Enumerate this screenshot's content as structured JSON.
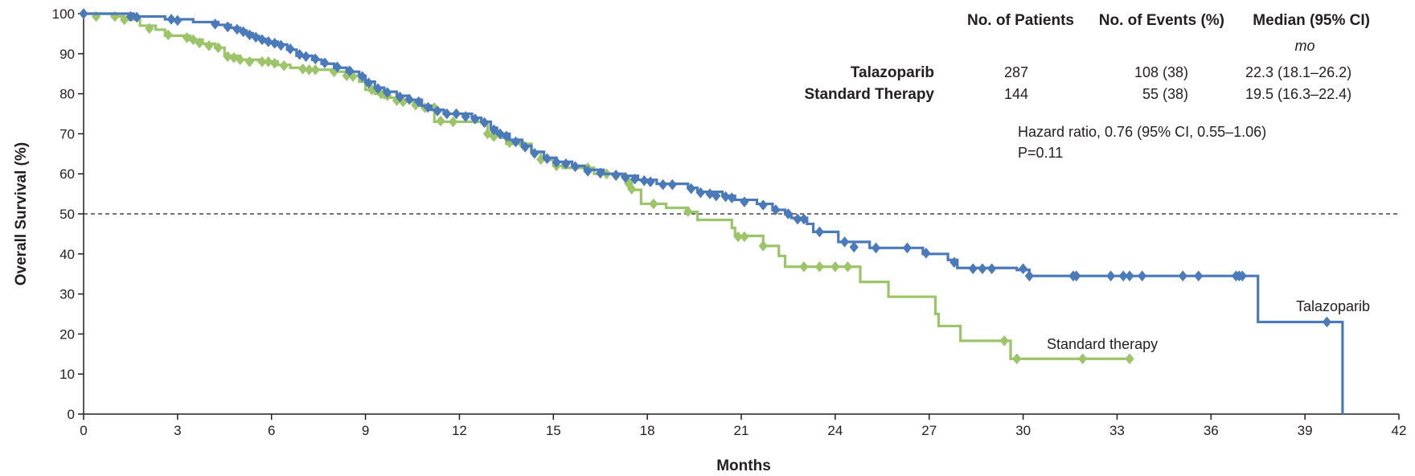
{
  "chart_data": {
    "type": "line",
    "subtype": "kaplan-meier",
    "xlabel": "Months",
    "ylabel": "Overall Survival (%)",
    "xlim": [
      0,
      42
    ],
    "ylim": [
      0,
      100
    ],
    "xticks": [
      0,
      3,
      6,
      9,
      12,
      15,
      18,
      21,
      24,
      27,
      30,
      33,
      36,
      39,
      42
    ],
    "yticks": [
      0,
      10,
      20,
      30,
      40,
      50,
      60,
      70,
      80,
      90,
      100
    ],
    "reference_line": {
      "y": 50,
      "style": "dashed"
    },
    "grid": false,
    "series": [
      {
        "name": "Talazoparib",
        "label": "Talazoparib",
        "color": "#4a7ab9",
        "steps": [
          [
            0,
            100
          ],
          [
            1.6,
            99.3
          ],
          [
            2.6,
            98.6
          ],
          [
            3.5,
            97.9
          ],
          [
            4.3,
            97.2
          ],
          [
            4.7,
            96.5
          ],
          [
            5.0,
            95.8
          ],
          [
            5.2,
            95.1
          ],
          [
            5.4,
            94.4
          ],
          [
            5.6,
            93.7
          ],
          [
            5.8,
            93.0
          ],
          [
            6.2,
            92.3
          ],
          [
            6.5,
            91.0
          ],
          [
            6.8,
            89.5
          ],
          [
            7.3,
            88.5
          ],
          [
            7.6,
            87.5
          ],
          [
            8.0,
            86.5
          ],
          [
            8.4,
            85.5
          ],
          [
            8.8,
            84.5
          ],
          [
            9.0,
            83.0
          ],
          [
            9.3,
            81.5
          ],
          [
            9.6,
            80.5
          ],
          [
            10.0,
            79.5
          ],
          [
            10.4,
            78.5
          ],
          [
            10.8,
            77.0
          ],
          [
            11.1,
            76.0
          ],
          [
            11.5,
            75.0
          ],
          [
            12.4,
            74.0
          ],
          [
            12.7,
            73.0
          ],
          [
            13.0,
            71.5
          ],
          [
            13.2,
            70.0
          ],
          [
            13.6,
            68.5
          ],
          [
            14.0,
            67.0
          ],
          [
            14.3,
            65.5
          ],
          [
            14.7,
            64.0
          ],
          [
            15.1,
            63.0
          ],
          [
            15.6,
            62.0
          ],
          [
            16.0,
            61.0
          ],
          [
            16.6,
            60.0
          ],
          [
            17.2,
            59.5
          ],
          [
            17.7,
            58.5
          ],
          [
            18.3,
            57.5
          ],
          [
            19.3,
            56.5
          ],
          [
            19.6,
            55.5
          ],
          [
            20.4,
            54.5
          ],
          [
            20.8,
            53.5
          ],
          [
            21.5,
            52.5
          ],
          [
            22.0,
            51.0
          ],
          [
            22.4,
            50.0
          ],
          [
            22.6,
            49.0
          ],
          [
            23.1,
            47.5
          ],
          [
            23.3,
            45.5
          ],
          [
            24.1,
            43.0
          ],
          [
            25.1,
            41.5
          ],
          [
            26.8,
            40.0
          ],
          [
            27.6,
            38.5
          ],
          [
            27.9,
            36.5
          ],
          [
            29.8,
            36.0
          ],
          [
            30.2,
            34.5
          ],
          [
            37.5,
            34.5
          ],
          [
            37.5,
            23.0
          ],
          [
            40.2,
            23.0
          ],
          [
            40.2,
            0
          ]
        ],
        "markers": [
          [
            0,
            100
          ],
          [
            1.5,
            99.3
          ],
          [
            1.7,
            99.1
          ],
          [
            2.8,
            98.6
          ],
          [
            3.0,
            98.3
          ],
          [
            4.2,
            97.4
          ],
          [
            4.6,
            96.7
          ],
          [
            4.9,
            96.1
          ],
          [
            5.1,
            95.5
          ],
          [
            5.3,
            94.7
          ],
          [
            5.5,
            94.1
          ],
          [
            5.7,
            93.5
          ],
          [
            5.9,
            93.0
          ],
          [
            6.1,
            92.6
          ],
          [
            6.3,
            92.1
          ],
          [
            6.6,
            91.2
          ],
          [
            6.9,
            89.8
          ],
          [
            7.1,
            89.3
          ],
          [
            7.4,
            88.7
          ],
          [
            7.7,
            87.7
          ],
          [
            8.1,
            86.7
          ],
          [
            8.5,
            85.7
          ],
          [
            8.9,
            84.3
          ],
          [
            9.1,
            82.7
          ],
          [
            9.4,
            81.3
          ],
          [
            9.7,
            80.3
          ],
          [
            10.1,
            79.2
          ],
          [
            10.4,
            78.6
          ],
          [
            10.7,
            78.0
          ],
          [
            11.0,
            76.6
          ],
          [
            11.3,
            75.7
          ],
          [
            11.6,
            75.0
          ],
          [
            11.9,
            75.0
          ],
          [
            12.2,
            74.3
          ],
          [
            12.5,
            73.7
          ],
          [
            12.8,
            72.8
          ],
          [
            13.1,
            71.0
          ],
          [
            13.3,
            70.0
          ],
          [
            13.5,
            69.4
          ],
          [
            13.8,
            68.0
          ],
          [
            14.1,
            66.7
          ],
          [
            14.4,
            65.1
          ],
          [
            14.8,
            63.8
          ],
          [
            15.1,
            62.9
          ],
          [
            15.4,
            62.5
          ],
          [
            15.7,
            61.8
          ],
          [
            16.1,
            60.7
          ],
          [
            16.5,
            60.2
          ],
          [
            17.0,
            59.7
          ],
          [
            17.3,
            59.1
          ],
          [
            17.6,
            58.7
          ],
          [
            17.9,
            58.3
          ],
          [
            18.1,
            58.0
          ],
          [
            18.5,
            57.3
          ],
          [
            18.8,
            57.3
          ],
          [
            19.4,
            56.3
          ],
          [
            19.7,
            55.3
          ],
          [
            20.0,
            55.0
          ],
          [
            20.2,
            54.5
          ],
          [
            20.5,
            54.3
          ],
          [
            20.7,
            54.0
          ],
          [
            21.1,
            53.0
          ],
          [
            21.7,
            52.2
          ],
          [
            22.1,
            51.0
          ],
          [
            22.5,
            50.0
          ],
          [
            22.8,
            48.7
          ],
          [
            23.0,
            48.7
          ],
          [
            23.5,
            45.5
          ],
          [
            24.3,
            43.0
          ],
          [
            24.6,
            41.7
          ],
          [
            25.3,
            41.5
          ],
          [
            26.3,
            41.5
          ],
          [
            26.9,
            40.2
          ],
          [
            27.8,
            37.9
          ],
          [
            28.4,
            36.3
          ],
          [
            28.7,
            36.3
          ],
          [
            29.0,
            36.3
          ],
          [
            30.0,
            36.3
          ],
          [
            30.2,
            34.5
          ],
          [
            31.6,
            34.5
          ],
          [
            31.7,
            34.5
          ],
          [
            32.8,
            34.5
          ],
          [
            33.2,
            34.5
          ],
          [
            33.4,
            34.5
          ],
          [
            33.8,
            34.5
          ],
          [
            35.1,
            34.5
          ],
          [
            35.6,
            34.5
          ],
          [
            36.8,
            34.5
          ],
          [
            36.9,
            34.5
          ],
          [
            37.0,
            34.5
          ],
          [
            39.7,
            23.0
          ]
        ]
      },
      {
        "name": "Standard Therapy",
        "label": "Standard therapy",
        "color": "#9cc468",
        "steps": [
          [
            0,
            100
          ],
          [
            0.9,
            99.3
          ],
          [
            1.3,
            98.5
          ],
          [
            1.8,
            97.0
          ],
          [
            2.3,
            96.0
          ],
          [
            2.6,
            94.5
          ],
          [
            3.4,
            93.5
          ],
          [
            3.8,
            92.5
          ],
          [
            4.2,
            91.5
          ],
          [
            4.5,
            89.5
          ],
          [
            5.0,
            88.5
          ],
          [
            5.6,
            88.0
          ],
          [
            6.2,
            87.2
          ],
          [
            6.6,
            86.5
          ],
          [
            7.0,
            86.0
          ],
          [
            8.0,
            85.5
          ],
          [
            8.4,
            84.5
          ],
          [
            8.8,
            83.0
          ],
          [
            9.0,
            81.0
          ],
          [
            9.3,
            80.0
          ],
          [
            9.6,
            79.0
          ],
          [
            10.0,
            78.0
          ],
          [
            10.6,
            77.0
          ],
          [
            11.1,
            76.0
          ],
          [
            11.2,
            73.0
          ],
          [
            12.9,
            70.0
          ],
          [
            13.3,
            69.0
          ],
          [
            13.5,
            67.5
          ],
          [
            14.3,
            65.5
          ],
          [
            14.6,
            63.5
          ],
          [
            15.0,
            62.0
          ],
          [
            15.3,
            61.5
          ],
          [
            16.3,
            60.0
          ],
          [
            17.3,
            58.5
          ],
          [
            17.5,
            56.0
          ],
          [
            17.8,
            52.5
          ],
          [
            18.6,
            51.5
          ],
          [
            19.3,
            50.5
          ],
          [
            19.6,
            48.5
          ],
          [
            20.7,
            46.5
          ],
          [
            20.8,
            44.5
          ],
          [
            21.7,
            42.0
          ],
          [
            22.2,
            39.5
          ],
          [
            22.4,
            36.8
          ],
          [
            24.8,
            33.0
          ],
          [
            25.7,
            29.3
          ],
          [
            27.2,
            25.0
          ],
          [
            27.3,
            22.0
          ],
          [
            28.0,
            18.3
          ],
          [
            29.6,
            13.8
          ],
          [
            33.5,
            13.8
          ]
        ],
        "markers": [
          [
            0,
            100
          ],
          [
            0.4,
            99.3
          ],
          [
            1.0,
            99.3
          ],
          [
            1.3,
            98.5
          ],
          [
            2.1,
            96.3
          ],
          [
            2.7,
            94.7
          ],
          [
            3.3,
            94.0
          ],
          [
            3.5,
            93.5
          ],
          [
            3.7,
            92.7
          ],
          [
            4.0,
            92.0
          ],
          [
            4.3,
            91.5
          ],
          [
            4.6,
            89.3
          ],
          [
            4.8,
            89.0
          ],
          [
            5.0,
            88.5
          ],
          [
            5.3,
            88.0
          ],
          [
            5.7,
            88.0
          ],
          [
            5.9,
            88.0
          ],
          [
            6.1,
            87.6
          ],
          [
            6.4,
            87.0
          ],
          [
            7.0,
            86.2
          ],
          [
            7.2,
            86.0
          ],
          [
            7.4,
            86.0
          ],
          [
            8.0,
            85.5
          ],
          [
            8.4,
            84.5
          ],
          [
            8.6,
            84.3
          ],
          [
            9.2,
            81.0
          ],
          [
            9.5,
            80.0
          ],
          [
            9.7,
            79.5
          ],
          [
            10.0,
            78.3
          ],
          [
            10.2,
            78.0
          ],
          [
            10.6,
            77.2
          ],
          [
            10.9,
            76.5
          ],
          [
            11.2,
            76.5
          ],
          [
            11.4,
            73.2
          ],
          [
            11.8,
            73.0
          ],
          [
            12.9,
            70.0
          ],
          [
            13.1,
            69.3
          ],
          [
            13.6,
            67.8
          ],
          [
            14.0,
            67.5
          ],
          [
            14.6,
            63.6
          ],
          [
            15.1,
            62.0
          ],
          [
            16.1,
            61.5
          ],
          [
            16.7,
            60.0
          ],
          [
            17.0,
            59.5
          ],
          [
            17.4,
            57.6
          ],
          [
            17.5,
            56.2
          ],
          [
            18.2,
            52.5
          ],
          [
            19.3,
            50.6
          ],
          [
            20.9,
            44.3
          ],
          [
            21.1,
            44.3
          ],
          [
            21.7,
            42.0
          ],
          [
            23.0,
            36.8
          ],
          [
            23.5,
            36.8
          ],
          [
            24.0,
            36.8
          ],
          [
            24.4,
            36.8
          ],
          [
            29.4,
            18.3
          ],
          [
            29.8,
            13.8
          ],
          [
            31.9,
            13.8
          ],
          [
            33.4,
            13.8
          ]
        ]
      }
    ]
  },
  "table": {
    "headers": {
      "patients": "No. of Patients",
      "events": "No. of Events (%)",
      "median": "Median (95% CI)",
      "median_unit": "mo"
    },
    "rows": [
      {
        "name": "Talazoparib",
        "patients": "287",
        "events": "108 (38)",
        "median": "22.3 (18.1–26.2)"
      },
      {
        "name": "Standard Therapy",
        "patients": "144",
        "events": "55 (38)",
        "median": "19.5 (16.3–22.4)"
      }
    ]
  },
  "stats": {
    "hazard_ratio": "Hazard ratio, 0.76 (95% CI, 0.55–1.06)",
    "p_value": "P=0.11"
  }
}
